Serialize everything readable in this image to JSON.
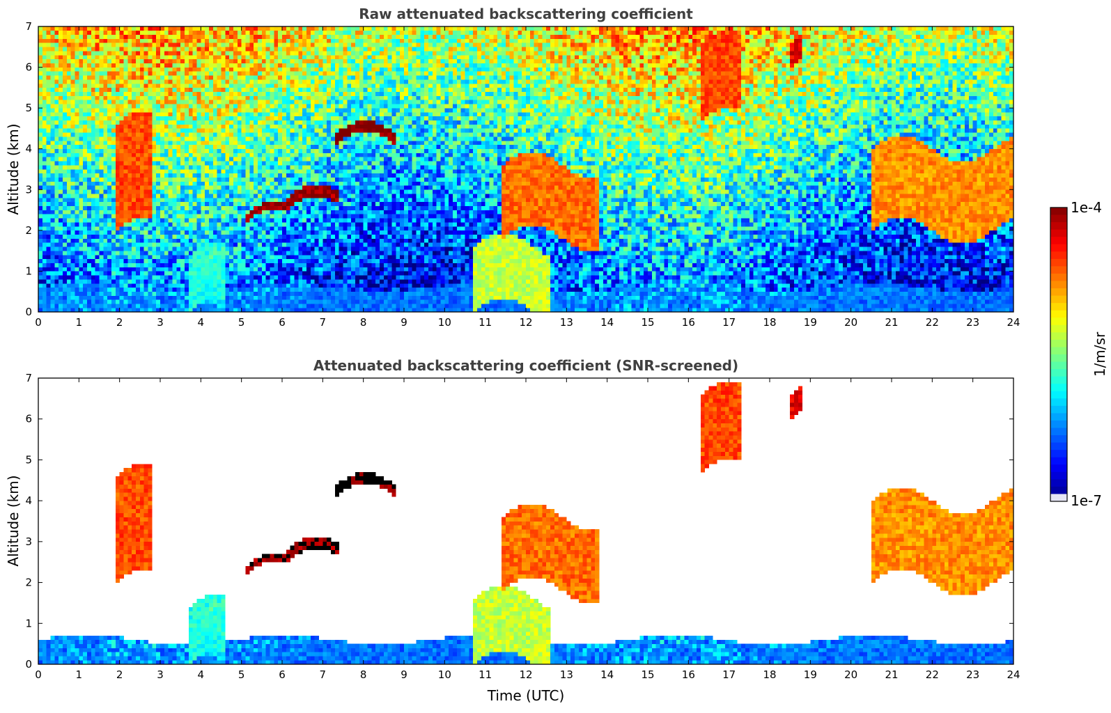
{
  "chart_data": [
    {
      "type": "heatmap",
      "title": "Raw attenuated backscattering coefficient",
      "xlabel": "",
      "ylabel": "Altitude (km)",
      "xlim": [
        0,
        24
      ],
      "ylim": [
        0,
        7
      ],
      "xticks": [
        0,
        1,
        2,
        3,
        4,
        5,
        6,
        7,
        8,
        9,
        10,
        11,
        12,
        13,
        14,
        15,
        16,
        17,
        18,
        19,
        20,
        21,
        22,
        23,
        24
      ],
      "yticks": [
        0,
        1,
        2,
        3,
        4,
        5,
        6,
        7
      ],
      "screened": false,
      "features": [
        {
          "kind": "boundary-layer",
          "t0": 0,
          "t1": 24,
          "h0": 0,
          "h1": 0.6,
          "log_value": -6.3
        },
        {
          "kind": "aerosol-column",
          "t0": 10.7,
          "t1": 12.6,
          "h0": 0,
          "h1": 1.6,
          "log_value": -5.3
        },
        {
          "kind": "aerosol-column",
          "t0": 3.7,
          "t1": 4.6,
          "h0": 0,
          "h1": 1.4,
          "log_value": -5.8
        },
        {
          "kind": "cloud-layer",
          "t0": 7.3,
          "t1": 8.8,
          "h0": 4.1,
          "h1": 4.35,
          "log_value": -4.0
        },
        {
          "kind": "cloud-layer",
          "t0": 6.1,
          "t1": 7.4,
          "h0": 2.5,
          "h1": 2.8,
          "log_value": -4.1
        },
        {
          "kind": "cloud-layer",
          "t0": 5.1,
          "t1": 6.1,
          "h0": 2.2,
          "h1": 2.4,
          "log_value": -4.1
        },
        {
          "kind": "aerosol-layer",
          "t0": 1.9,
          "t1": 2.8,
          "h0": 2.0,
          "h1": 4.6,
          "log_value": -4.6
        },
        {
          "kind": "aerosol-layer",
          "t0": 11.4,
          "t1": 13.8,
          "h0": 1.8,
          "h1": 3.6,
          "log_value": -4.7
        },
        {
          "kind": "aerosol-layer",
          "t0": 20.5,
          "t1": 24,
          "h0": 2.0,
          "h1": 4.0,
          "log_value": -4.8
        },
        {
          "kind": "cirrus",
          "t0": 16.3,
          "t1": 17.3,
          "h0": 4.7,
          "h1": 6.6,
          "log_value": -4.6
        },
        {
          "kind": "cirrus",
          "t0": 18.5,
          "t1": 18.8,
          "h0": 6.0,
          "h1": 6.6,
          "log_value": -4.3
        }
      ]
    },
    {
      "type": "heatmap",
      "title": "Attenuated backscattering coefficient (SNR-screened)",
      "xlabel": "Time (UTC)",
      "ylabel": "Altitude (km)",
      "xlim": [
        0,
        24
      ],
      "ylim": [
        0,
        7
      ],
      "xticks": [
        0,
        1,
        2,
        3,
        4,
        5,
        6,
        7,
        8,
        9,
        10,
        11,
        12,
        13,
        14,
        15,
        16,
        17,
        18,
        19,
        20,
        21,
        22,
        23,
        24
      ],
      "yticks": [
        0,
        1,
        2,
        3,
        4,
        5,
        6,
        7
      ],
      "screened": true
    }
  ],
  "colorbar": {
    "top_label": "1e-4",
    "bottom_label": "1e-7",
    "unit_label": "1/m/sr",
    "log_min": -7,
    "log_max": -4,
    "colormap": "jet"
  }
}
